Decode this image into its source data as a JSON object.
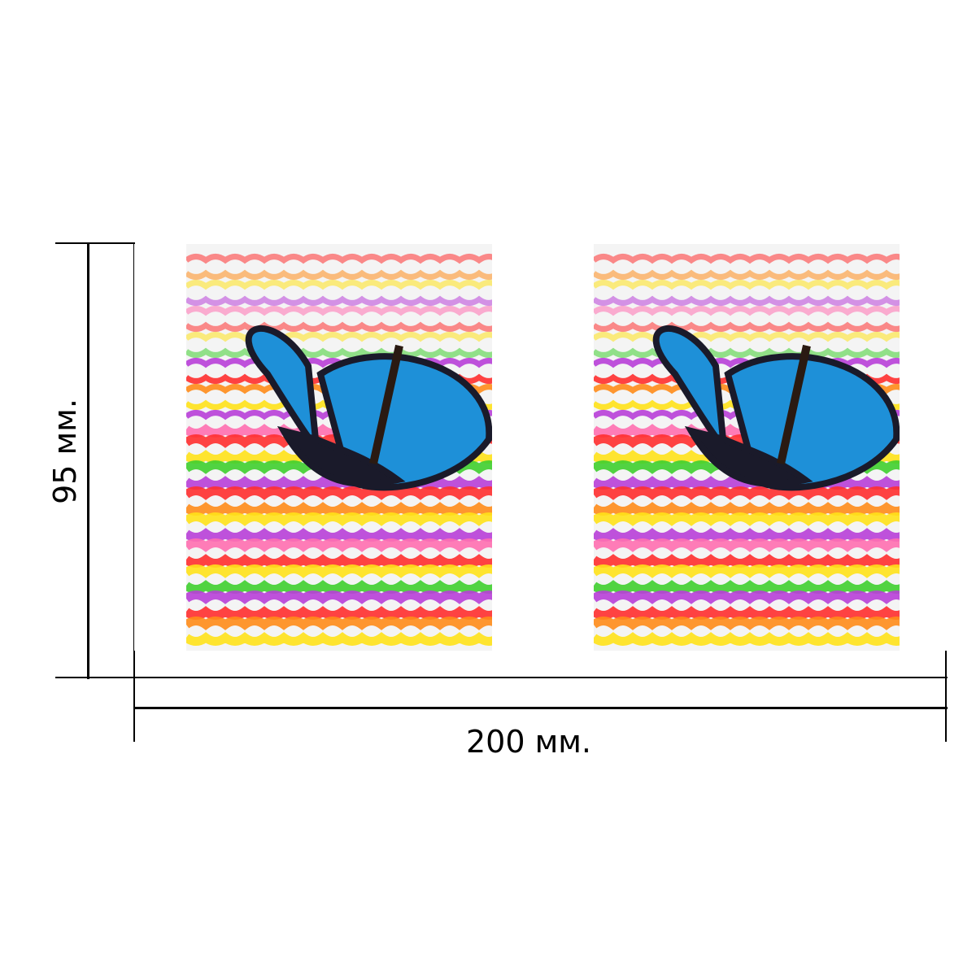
{
  "dimensions": {
    "width_label": "200 мм.",
    "height_label": "95 мм."
  },
  "print": {
    "panels": [
      {
        "image": "butterfly-rainbow-ripple"
      },
      {
        "image": "butterfly-rainbow-ripple"
      }
    ],
    "colors": {
      "butterfly_wing": "#1e90d8",
      "butterfly_edge": "#1a1a2a",
      "rainbow": [
        "#ff2f2f",
        "#ff8c1a",
        "#ffe21a",
        "#3fcf2f",
        "#b83fd8",
        "#ff6fb0"
      ]
    }
  }
}
